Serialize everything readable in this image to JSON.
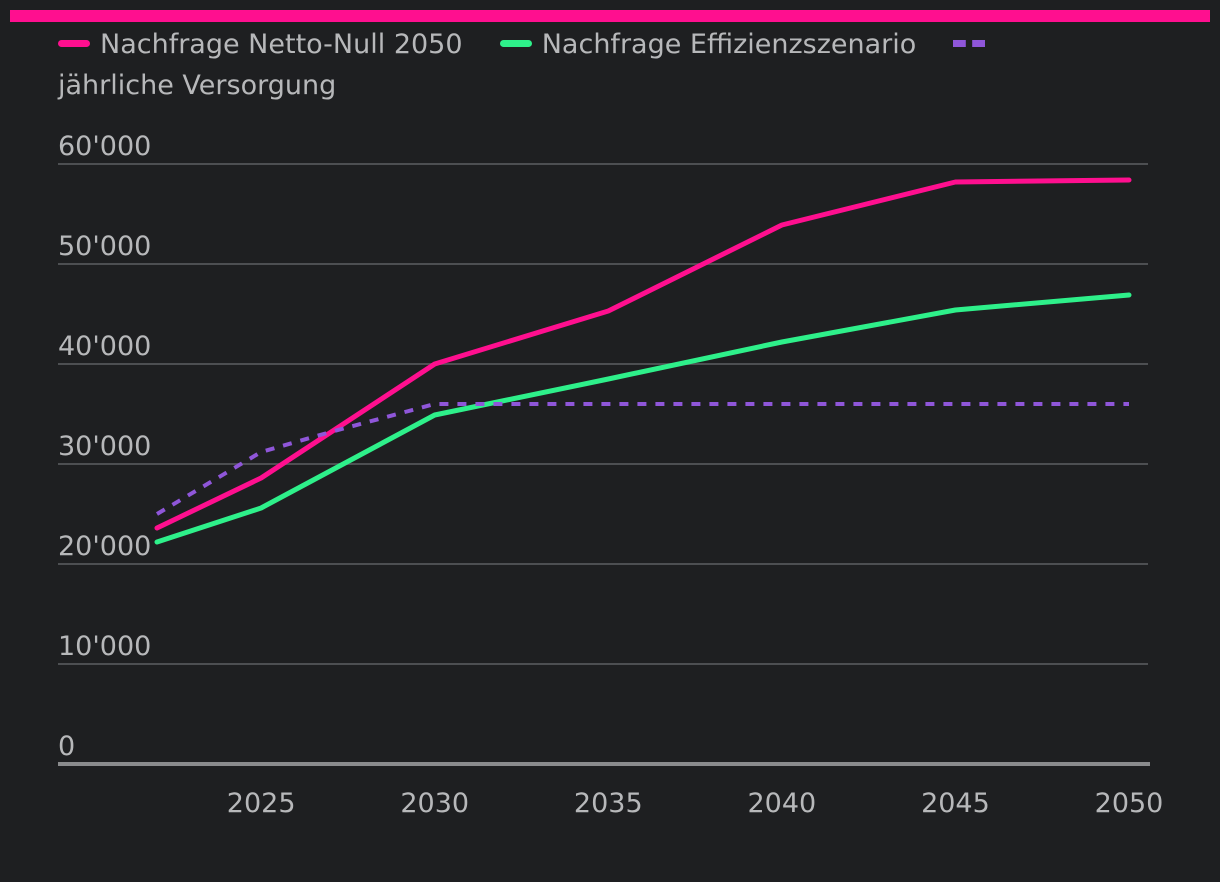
{
  "colors": {
    "background": "#1e1f21",
    "top_bar": "#ff0f8f",
    "grid": "#4d4f52",
    "axis": "#8a8b8d",
    "tick_text": "#b7b8ba"
  },
  "chart_data": {
    "type": "line",
    "title": "",
    "xlabel": "",
    "ylabel": "",
    "xlim": [
      2022,
      2050
    ],
    "ylim": [
      0,
      60000
    ],
    "y_ticks": [
      0,
      10000,
      20000,
      30000,
      40000,
      50000,
      60000
    ],
    "y_tick_labels": [
      "0",
      "10'000",
      "20'000",
      "30'000",
      "40'000",
      "50'000",
      "60'000"
    ],
    "x_ticks": [
      2025,
      2030,
      2035,
      2040,
      2045,
      2050
    ],
    "x_tick_labels": [
      "2025",
      "2030",
      "2035",
      "2040",
      "2045",
      "2050"
    ],
    "grid": true,
    "legend_position": "top-left",
    "series": [
      {
        "name": "Nachfrage Netto-Null 2050",
        "color": "#ff0f8f",
        "style": "solid",
        "x": [
          2022,
          2025,
          2030,
          2035,
          2040,
          2045,
          2050
        ],
        "values": [
          23600,
          28600,
          40000,
          45300,
          53900,
          58200,
          58400
        ]
      },
      {
        "name": "Nachfrage Effizienzszenario",
        "color": "#2ef08a",
        "style": "solid",
        "x": [
          2022,
          2025,
          2030,
          2035,
          2040,
          2045,
          2050
        ],
        "values": [
          22200,
          25600,
          34900,
          38500,
          42200,
          45400,
          46900
        ]
      },
      {
        "name": "jährliche Versorgung",
        "color": "#8f56d9",
        "style": "dashed",
        "x": [
          2022,
          2025,
          2027,
          2030,
          2032,
          2035,
          2040,
          2045,
          2050
        ],
        "values": [
          25000,
          31200,
          33200,
          36000,
          36000,
          36000,
          36000,
          36000,
          36000
        ]
      }
    ]
  }
}
